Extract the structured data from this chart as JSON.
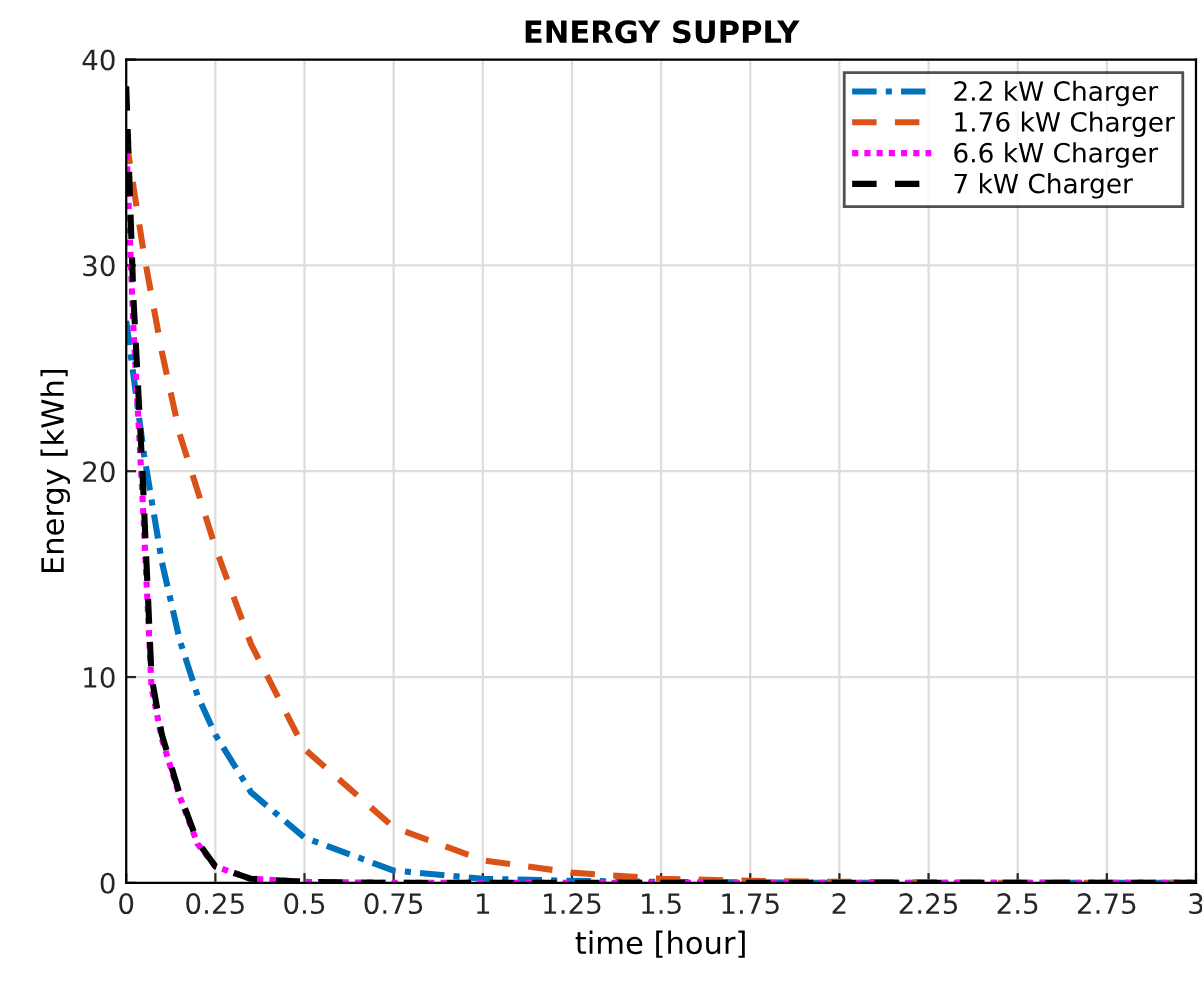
{
  "chart_data": {
    "type": "line",
    "title": "ENERGY SUPPLY",
    "xlabel": "time [hour]",
    "ylabel": "Energy [kWh]",
    "xlim": [
      0,
      3
    ],
    "ylim": [
      0,
      40
    ],
    "xticks": [
      0,
      0.25,
      0.5,
      0.75,
      1,
      1.25,
      1.5,
      1.75,
      2,
      2.25,
      2.5,
      2.75,
      3
    ],
    "yticks": [
      0,
      10,
      20,
      30,
      40
    ],
    "grid": true,
    "legend": "top right",
    "series": [
      {
        "name": "2.2 kW Charger",
        "color": "#0072bd",
        "line_style": "dashdot",
        "x": [
          0,
          0.05,
          0.1,
          0.15,
          0.2,
          0.25,
          0.35,
          0.5,
          0.75,
          1,
          1.25,
          1.5,
          2,
          2.5,
          3
        ],
        "values": [
          27.3,
          20.8,
          15.6,
          11.8,
          9.1,
          7.2,
          4.4,
          2.2,
          0.6,
          0.2,
          0.1,
          0.05,
          0,
          0,
          0
        ]
      },
      {
        "name": "1.76 kW Charger",
        "color": "#d95319",
        "line_style": "dashed",
        "x": [
          0,
          0.05,
          0.1,
          0.15,
          0.25,
          0.35,
          0.5,
          0.75,
          1,
          1.25,
          1.5,
          1.75,
          2,
          2.5,
          3
        ],
        "values": [
          36.1,
          30.5,
          25.8,
          21.8,
          16.3,
          11.6,
          6.5,
          2.7,
          1.1,
          0.5,
          0.2,
          0.1,
          0.05,
          0,
          0
        ]
      },
      {
        "name": "6.6 kW Charger",
        "color": "#ff00ff",
        "line_style": "dotted",
        "x": [
          0,
          0.02,
          0.045,
          0.071,
          0.1,
          0.15,
          0.2,
          0.25,
          0.35,
          0.5,
          0.75,
          1,
          2,
          3
        ],
        "values": [
          36,
          27,
          19,
          9.5,
          7,
          4.2,
          1.9,
          0.8,
          0.2,
          0.05,
          0,
          0,
          0,
          0
        ]
      },
      {
        "name": "7 kW Charger",
        "color": "#000000",
        "line_style": "dashed",
        "x": [
          0,
          0.02,
          0.045,
          0.071,
          0.1,
          0.15,
          0.2,
          0.25,
          0.35,
          0.5,
          0.75,
          1,
          2,
          3
        ],
        "values": [
          38.7,
          28.5,
          20.2,
          10,
          7.2,
          4.3,
          2,
          0.8,
          0.2,
          0.05,
          0,
          0,
          0,
          0
        ]
      }
    ]
  }
}
